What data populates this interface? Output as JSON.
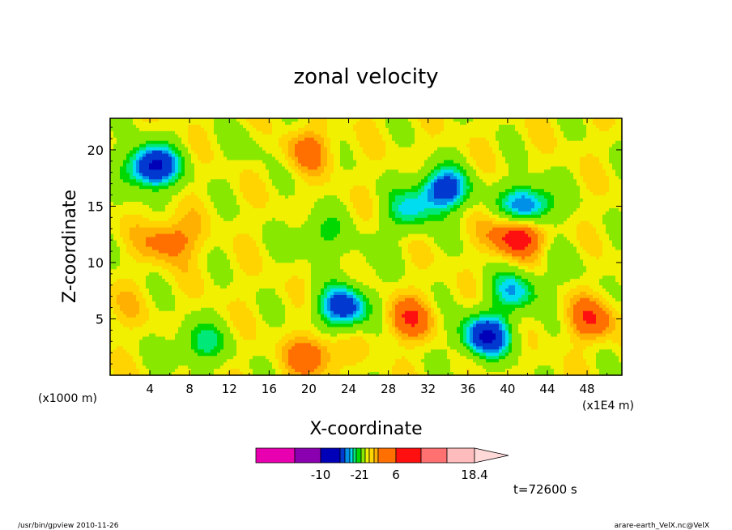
{
  "chart_data": {
    "type": "heatmap",
    "title": "zonal velocity",
    "xlabel": "X-coordinate",
    "ylabel": "Z-coordinate",
    "x_unit_left": "(x1000 m)",
    "x_unit_right": "(x1E4 m)",
    "xlim": [
      0,
      51.5
    ],
    "ylim": [
      0,
      22.8
    ],
    "x_ticks": [
      4,
      8,
      12,
      16,
      20,
      24,
      28,
      32,
      36,
      40,
      44,
      48
    ],
    "y_ticks": [
      5,
      10,
      15,
      20
    ],
    "time_label": "t=72600 s",
    "colorbar": {
      "levels": [
        -18.4,
        -14.2,
        -10,
        -7.5,
        -5,
        -4,
        -3,
        -2,
        -1,
        1,
        2,
        3,
        4,
        6,
        10,
        14.2,
        18.4
      ],
      "tick_labels": [
        {
          "value": -10,
          "label": "-10"
        },
        {
          "value": -2,
          "label": "-2"
        },
        {
          "value": 1,
          "label": "1"
        },
        {
          "value": 6,
          "label": "6"
        },
        {
          "value": 18.4,
          "label": "18.4"
        }
      ],
      "colors": [
        "#e800b0",
        "#8a00b0",
        "#0000b8",
        "#0038d0",
        "#0090e8",
        "#00dcf0",
        "#00e878",
        "#00d800",
        "#88e800",
        "#f0f000",
        "#ffd400",
        "#ffb000",
        "#ff7000",
        "#ff1010",
        "#ff7070",
        "#ffbcbc",
        "#ffd8d8"
      ]
    },
    "field_features": [
      {
        "x": 4.2,
        "z": 18.5,
        "value": -10
      },
      {
        "x": 9.0,
        "z": 2.8,
        "value": -4
      },
      {
        "x": 21.0,
        "z": 12.5,
        "value": -3
      },
      {
        "x": 23.5,
        "z": 6.0,
        "value": -8
      },
      {
        "x": 30.0,
        "z": 14.5,
        "value": -4
      },
      {
        "x": 33.5,
        "z": 16.5,
        "value": -8
      },
      {
        "x": 37.8,
        "z": 3.5,
        "value": -9
      },
      {
        "x": 41.0,
        "z": 12.5,
        "value": 7
      },
      {
        "x": 42.0,
        "z": 15.0,
        "value": -8
      },
      {
        "x": 40.8,
        "z": 7.5,
        "value": -5
      },
      {
        "x": 6.0,
        "z": 12.0,
        "value": 4
      },
      {
        "x": 30.0,
        "z": 5.0,
        "value": 4
      },
      {
        "x": 20.0,
        "z": 20.0,
        "value": 3
      },
      {
        "x": 20.5,
        "z": 1.8,
        "value": 4
      },
      {
        "x": 48.5,
        "z": 5.0,
        "value": 4
      },
      {
        "x": 14.0,
        "z": 20.5,
        "value": -1
      },
      {
        "x": 26.0,
        "z": 10.5,
        "value": -1
      },
      {
        "x": 46.0,
        "z": 10.0,
        "value": -1
      },
      {
        "x": 1.0,
        "z": 6.0,
        "value": 1
      }
    ]
  },
  "footer": {
    "left": "/usr/bin/gpview  2010-11-26",
    "right": "arare-earth_VelX.nc@VelX"
  }
}
